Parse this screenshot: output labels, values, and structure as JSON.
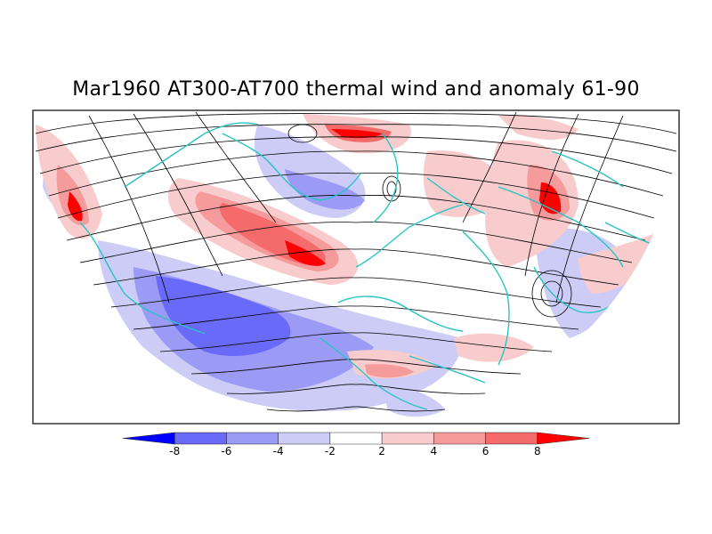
{
  "title": "Mar1960 AT300-AT700 thermal wind and anomaly 61-90",
  "colorbar": {
    "ticks": [
      "-8",
      "-6",
      "-4",
      "-2",
      "2",
      "4",
      "6",
      "8"
    ],
    "colors": [
      "#0000ff",
      "#6a6af9",
      "#9b9bf5",
      "#ccccf7",
      "#ffffff",
      "#f8cccc",
      "#f59b9b",
      "#f56a6a",
      "#ff0000"
    ]
  },
  "map": {
    "projection": "northern-hemisphere-polar",
    "coastline_color": "#27c4c4",
    "streamline_color": "#000000",
    "positive_color": "#f56a6a",
    "negative_color": "#6a6af9"
  }
}
